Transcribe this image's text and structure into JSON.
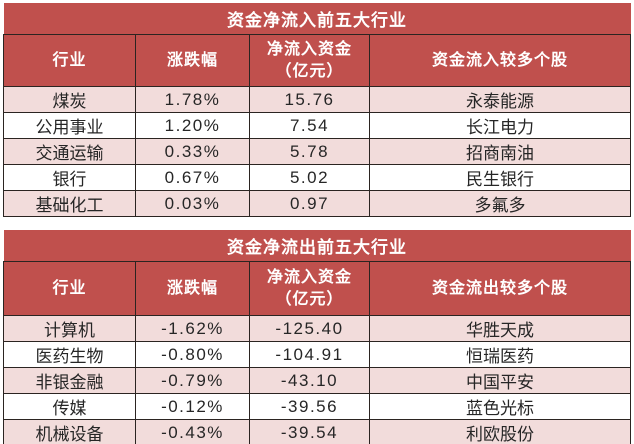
{
  "colors": {
    "header_bg": "#c0504d",
    "row_pink": "#f2dcdb",
    "row_white": "#ffffff",
    "border": "#2b2421",
    "header_text": "#ffffff",
    "body_text": "#262626"
  },
  "tables": [
    {
      "title": "资金净流入前五大行业",
      "columns": {
        "industry": "行业",
        "change": "涨跌幅",
        "net": "净流入资金\n（亿元）",
        "stocks": "资金流入较多个股"
      },
      "rows": [
        {
          "industry": "煤炭",
          "change": "1.78%",
          "net": "15.76",
          "stock": "永泰能源"
        },
        {
          "industry": "公用事业",
          "change": "1.20%",
          "net": "7.54",
          "stock": "长江电力"
        },
        {
          "industry": "交通运输",
          "change": "0.33%",
          "net": "5.78",
          "stock": "招商南油"
        },
        {
          "industry": "银行",
          "change": "0.67%",
          "net": "5.02",
          "stock": "民生银行"
        },
        {
          "industry": "基础化工",
          "change": "0.03%",
          "net": "0.97",
          "stock": "多氟多"
        }
      ]
    },
    {
      "title": "资金净流出前五大行业",
      "columns": {
        "industry": "行业",
        "change": "涨跌幅",
        "net": "净流入资金\n（亿元）",
        "stocks": "资金流出较多个股"
      },
      "rows": [
        {
          "industry": "计算机",
          "change": "-1.62%",
          "net": "-125.40",
          "stock": "华胜天成"
        },
        {
          "industry": "医药生物",
          "change": "-0.80%",
          "net": "-104.91",
          "stock": "恒瑞医药"
        },
        {
          "industry": "非银金融",
          "change": "-0.79%",
          "net": "-43.10",
          "stock": "中国平安"
        },
        {
          "industry": "传媒",
          "change": "-0.12%",
          "net": "-39.56",
          "stock": "蓝色光标"
        },
        {
          "industry": "机械设备",
          "change": "-0.43%",
          "net": "-39.54",
          "stock": "利欧股份"
        }
      ]
    }
  ],
  "chart_data": [
    {
      "type": "table",
      "title": "资金净流入前五大行业",
      "columns": [
        "行业",
        "涨跌幅",
        "净流入资金（亿元）",
        "资金流入较多个股"
      ],
      "rows": [
        [
          "煤炭",
          "1.78%",
          15.76,
          "永泰能源"
        ],
        [
          "公用事业",
          "1.20%",
          7.54,
          "长江电力"
        ],
        [
          "交通运输",
          "0.33%",
          5.78,
          "招商南油"
        ],
        [
          "银行",
          "0.67%",
          5.02,
          "民生银行"
        ],
        [
          "基础化工",
          "0.03%",
          0.97,
          "多氟多"
        ]
      ]
    },
    {
      "type": "table",
      "title": "资金净流出前五大行业",
      "columns": [
        "行业",
        "涨跌幅",
        "净流入资金（亿元）",
        "资金流出较多个股"
      ],
      "rows": [
        [
          "计算机",
          "-1.62%",
          -125.4,
          "华胜天成"
        ],
        [
          "医药生物",
          "-0.80%",
          -104.91,
          "恒瑞医药"
        ],
        [
          "非银金融",
          "-0.79%",
          -43.1,
          "中国平安"
        ],
        [
          "传媒",
          "-0.12%",
          -39.56,
          "蓝色光标"
        ],
        [
          "机械设备",
          "-0.43%",
          -39.54,
          "利欧股份"
        ]
      ]
    }
  ]
}
